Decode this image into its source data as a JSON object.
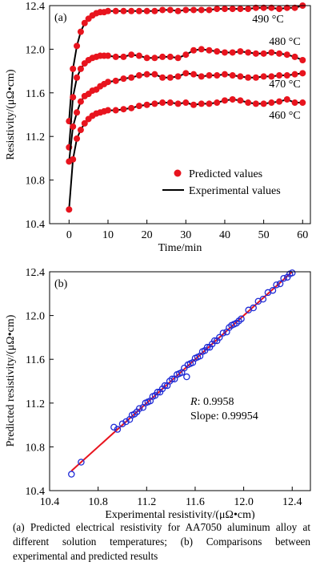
{
  "caption": "(a) Predicted electrical resistivity for AA7050 aluminum alloy at different solution temperatures; (b) Comparisons between experimental and predicted results",
  "colors": {
    "predicted": "#e8141e",
    "experimental": "#000000",
    "scatter": "#1f2bd6",
    "fit": "#e8141e"
  },
  "chart_data": [
    {
      "type": "line",
      "panel_label": "(a)",
      "xlabel": "Time/min",
      "ylabel": "Resistivity/(μΩ•cm)",
      "xlim": [
        -5,
        62
      ],
      "ylim": [
        10.4,
        12.4
      ],
      "xticks": [
        "0",
        "10",
        "20",
        "30",
        "40",
        "50",
        "60"
      ],
      "yticks": [
        "10.4",
        "10.8",
        "11.2",
        "11.6",
        "12.0",
        "12.4"
      ],
      "grid": false,
      "legend": {
        "position": "lower-right",
        "entries": [
          "Predicted values",
          "Experimental values"
        ]
      },
      "series": [
        {
          "name": "490 °C",
          "kind": "predicted",
          "x": [
            0,
            1,
            2,
            3,
            4,
            5,
            6,
            7,
            8,
            9,
            10,
            12,
            14,
            16,
            18,
            20,
            22,
            24,
            26,
            28,
            30,
            32,
            34,
            36,
            38,
            40,
            42,
            44,
            46,
            48,
            50,
            52,
            54,
            56,
            58,
            60
          ],
          "y": [
            11.34,
            11.82,
            12.03,
            12.16,
            12.24,
            12.28,
            12.31,
            12.33,
            12.34,
            12.34,
            12.35,
            12.35,
            12.35,
            12.35,
            12.35,
            12.35,
            12.35,
            12.36,
            12.36,
            12.35,
            12.36,
            12.36,
            12.36,
            12.36,
            12.37,
            12.37,
            12.37,
            12.37,
            12.37,
            12.38,
            12.38,
            12.38,
            12.37,
            12.38,
            12.38,
            12.4
          ]
        },
        {
          "name": "480 °C",
          "kind": "predicted",
          "x": [
            0,
            1,
            2,
            3,
            4,
            5,
            6,
            7,
            8,
            9,
            10,
            12,
            14,
            16,
            18,
            20,
            22,
            24,
            26,
            28,
            30,
            32,
            34,
            36,
            38,
            40,
            42,
            44,
            46,
            48,
            50,
            52,
            54,
            56,
            58,
            60
          ],
          "y": [
            11.1,
            11.56,
            11.74,
            11.82,
            11.87,
            11.9,
            11.92,
            11.93,
            11.94,
            11.94,
            11.94,
            11.93,
            11.93,
            11.95,
            11.94,
            11.92,
            11.92,
            11.93,
            11.93,
            11.92,
            11.95,
            11.99,
            12.0,
            11.99,
            11.98,
            11.97,
            11.97,
            11.98,
            11.97,
            11.96,
            11.96,
            11.97,
            11.96,
            11.95,
            11.93,
            11.9
          ]
        },
        {
          "name": "470 °C",
          "kind": "predicted",
          "x": [
            0,
            1,
            2,
            3,
            4,
            5,
            6,
            7,
            8,
            9,
            10,
            12,
            14,
            16,
            18,
            20,
            22,
            24,
            26,
            28,
            30,
            32,
            34,
            36,
            38,
            40,
            42,
            44,
            46,
            48,
            50,
            52,
            54,
            56,
            58,
            60
          ],
          "y": [
            10.97,
            11.29,
            11.42,
            11.52,
            11.57,
            11.59,
            11.62,
            11.63,
            11.66,
            11.68,
            11.7,
            11.71,
            11.73,
            11.74,
            11.76,
            11.77,
            11.77,
            11.74,
            11.74,
            11.75,
            11.78,
            11.77,
            11.75,
            11.76,
            11.76,
            11.77,
            11.76,
            11.75,
            11.74,
            11.74,
            11.75,
            11.75,
            11.76,
            11.76,
            11.77,
            11.78
          ]
        },
        {
          "name": "460 °C",
          "kind": "predicted",
          "x": [
            0,
            1,
            2,
            3,
            4,
            5,
            6,
            7,
            8,
            9,
            10,
            12,
            14,
            16,
            18,
            20,
            22,
            24,
            26,
            28,
            30,
            32,
            34,
            36,
            38,
            40,
            42,
            44,
            46,
            48,
            50,
            52,
            54,
            56,
            58,
            60
          ],
          "y": [
            10.53,
            10.99,
            11.18,
            11.26,
            11.32,
            11.36,
            11.39,
            11.41,
            11.42,
            11.43,
            11.44,
            11.44,
            11.45,
            11.46,
            11.48,
            11.49,
            11.5,
            11.51,
            11.51,
            11.5,
            11.51,
            11.49,
            11.5,
            11.5,
            11.51,
            11.53,
            11.54,
            11.53,
            11.51,
            11.5,
            11.5,
            11.51,
            11.52,
            11.54,
            11.51,
            11.51
          ]
        }
      ]
    },
    {
      "type": "scatter",
      "panel_label": "(b)",
      "xlabel": "Experimental resistivity/(μΩ•cm)",
      "ylabel": "Predicted resistivity/(μΩ•cm)",
      "xlim": [
        10.4,
        12.55
      ],
      "ylim": [
        10.4,
        12.4
      ],
      "xticks": [
        "10.4",
        "10.8",
        "11.2",
        "11.6",
        "12.0",
        "12.4"
      ],
      "yticks": [
        "10.4",
        "10.8",
        "11.2",
        "11.6",
        "12.0",
        "12.4"
      ],
      "grid": false,
      "annotation": {
        "r_label": "R",
        "r_value": ": 0.9958",
        "slope_text": "Slope: 0.99954"
      },
      "fit_line": {
        "x": [
          10.58,
          12.4
        ],
        "y": [
          10.58,
          12.4
        ]
      },
      "points": {
        "x": [
          10.58,
          10.66,
          10.93,
          10.96,
          11.0,
          11.03,
          11.06,
          11.08,
          11.1,
          11.12,
          11.14,
          11.17,
          11.19,
          11.21,
          11.23,
          11.25,
          11.27,
          11.29,
          11.31,
          11.33,
          11.35,
          11.37,
          11.39,
          11.41,
          11.43,
          11.45,
          11.47,
          11.49,
          11.51,
          11.53,
          11.54,
          11.56,
          11.58,
          11.6,
          11.62,
          11.64,
          11.66,
          11.68,
          11.7,
          11.72,
          11.74,
          11.76,
          11.78,
          11.8,
          11.83,
          11.86,
          11.88,
          11.9,
          11.92,
          11.94,
          11.96,
          11.98,
          12.04,
          12.08,
          12.12,
          12.16,
          12.2,
          12.24,
          12.27,
          12.3,
          12.33,
          12.36,
          12.38,
          12.4
        ],
        "y": [
          10.55,
          10.66,
          10.98,
          10.96,
          11.01,
          11.03,
          11.05,
          11.09,
          11.1,
          11.12,
          11.15,
          11.16,
          11.2,
          11.21,
          11.22,
          11.26,
          11.27,
          11.3,
          11.3,
          11.33,
          11.36,
          11.36,
          11.4,
          11.42,
          11.42,
          11.46,
          11.47,
          11.48,
          11.52,
          11.44,
          11.55,
          11.56,
          11.57,
          11.61,
          11.62,
          11.63,
          11.67,
          11.68,
          11.71,
          11.71,
          11.74,
          11.77,
          11.77,
          11.8,
          11.84,
          11.85,
          11.89,
          11.91,
          11.92,
          11.93,
          11.95,
          11.97,
          12.05,
          12.07,
          12.13,
          12.15,
          12.21,
          12.23,
          12.28,
          12.29,
          12.34,
          12.35,
          12.38,
          12.39
        ]
      }
    }
  ]
}
